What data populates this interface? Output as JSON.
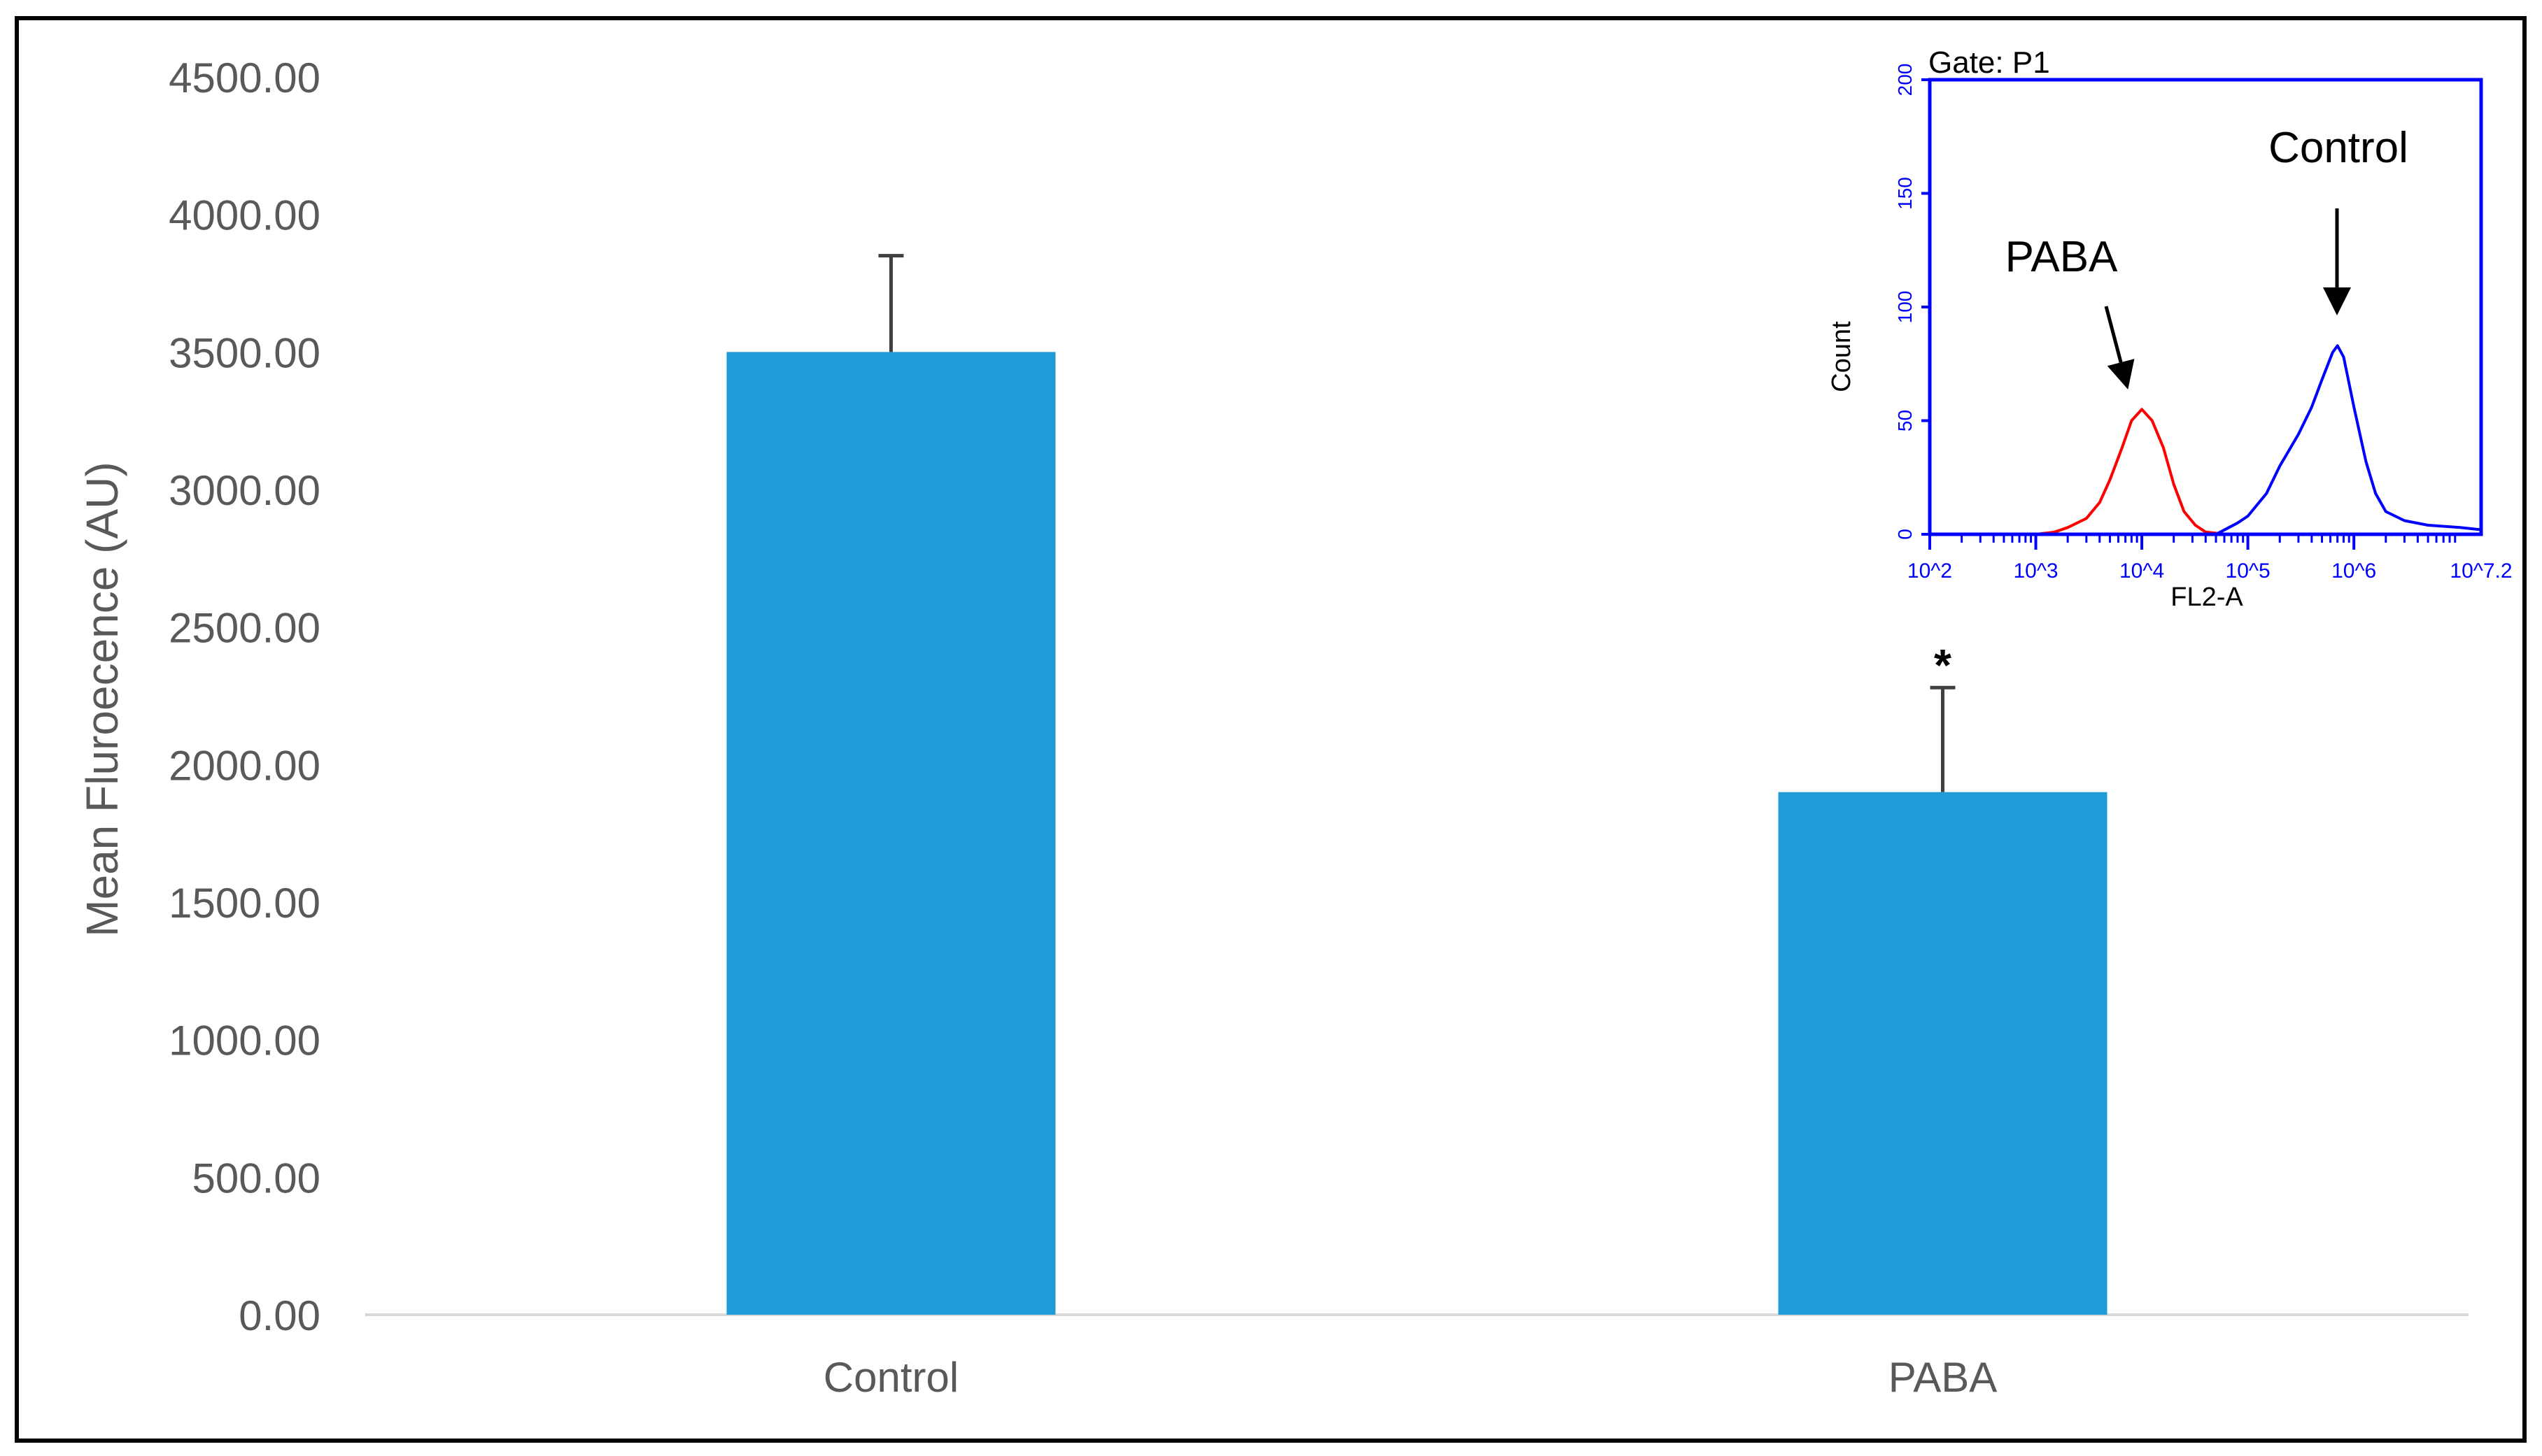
{
  "colors": {
    "bar": "#1f9bd7",
    "axis_text": "#595959",
    "axis_line": "#d9d9d9",
    "error_bar": "#404040",
    "frame": "#000000",
    "inset_axis": "#0000ff",
    "inset_control": "#0000ff",
    "inset_paba": "#ff0000"
  },
  "chart_data": [
    {
      "type": "bar",
      "categories": [
        "Control",
        "PABA"
      ],
      "values": [
        3500,
        1900
      ],
      "error_upper": [
        350,
        380
      ],
      "ylabel": "Mean Fluroecence (AU)",
      "ylim": [
        0,
        4500
      ],
      "yticks": [
        0,
        500,
        1000,
        1500,
        2000,
        2500,
        3000,
        3500,
        4000,
        4500
      ],
      "ytick_labels": [
        "0.00",
        "500.00",
        "1000.00",
        "1500.00",
        "2000.00",
        "2500.00",
        "3000.00",
        "3500.00",
        "4000.00",
        "4500.00"
      ],
      "grid": false,
      "annotations": [
        {
          "category": "PABA",
          "text": "*"
        }
      ]
    },
    {
      "type": "line",
      "title": "Gate: P1",
      "xlabel": "FL2-A",
      "ylabel": "Count",
      "x_scale": "log",
      "xlim": [
        100,
        15848932
      ],
      "ylim": [
        0,
        200
      ],
      "xtick_labels": [
        "10^2",
        "10^3",
        "10^4",
        "10^5",
        "10^6",
        "10^7.2"
      ],
      "yticks": [
        0,
        50,
        100,
        150,
        200
      ],
      "ytick_labels": [
        "0",
        "50",
        "100",
        "150",
        "200"
      ],
      "series": [
        {
          "name": "PABA",
          "points": [
            [
              100,
              0
            ],
            [
              1000,
              0
            ],
            [
              1500,
              1
            ],
            [
              2000,
              3
            ],
            [
              3000,
              7
            ],
            [
              4000,
              14
            ],
            [
              5000,
              24
            ],
            [
              6500,
              38
            ],
            [
              8000,
              50
            ],
            [
              10000,
              55
            ],
            [
              12500,
              50
            ],
            [
              16000,
              38
            ],
            [
              20000,
              22
            ],
            [
              25000,
              10
            ],
            [
              32000,
              4
            ],
            [
              40000,
              1
            ],
            [
              63000,
              0
            ]
          ]
        },
        {
          "name": "Control",
          "points": [
            [
              50000,
              0
            ],
            [
              80000,
              5
            ],
            [
              100000,
              8
            ],
            [
              150000,
              18
            ],
            [
              200000,
              30
            ],
            [
              300000,
              44
            ],
            [
              400000,
              56
            ],
            [
              500000,
              68
            ],
            [
              630000,
              80
            ],
            [
              700000,
              83
            ],
            [
              800000,
              78
            ],
            [
              1000000,
              56
            ],
            [
              1300000,
              32
            ],
            [
              1600000,
              18
            ],
            [
              2000000,
              10
            ],
            [
              3000000,
              6
            ],
            [
              5000000,
              4
            ],
            [
              10000000,
              3
            ],
            [
              15848932,
              2
            ]
          ]
        }
      ],
      "annotations": [
        {
          "text": "PABA",
          "target_series": "PABA"
        },
        {
          "text": "Control",
          "target_series": "Control"
        }
      ]
    }
  ]
}
